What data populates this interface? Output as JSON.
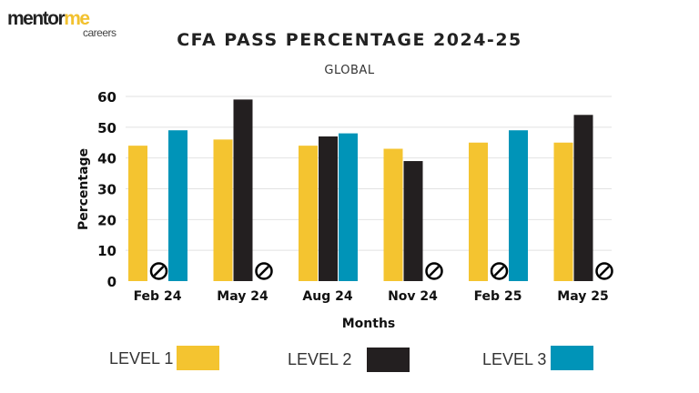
{
  "logo": {
    "text_main": "mentor",
    "text_accent": "me",
    "text_sub": "careers"
  },
  "chart_data": {
    "type": "bar",
    "title": "CFA PASS PERCENTAGE 2024-25",
    "subtitle": "GLOBAL",
    "xlabel": "Months",
    "ylabel": "Percentage",
    "ylim": [
      0,
      60
    ],
    "yticks": [
      0,
      10,
      20,
      30,
      40,
      50,
      60
    ],
    "grid": true,
    "legend_placement": "bottom",
    "categories": [
      "Feb 24",
      "May 24",
      "Aug 24",
      "Nov 24",
      "Feb 25",
      "May 25"
    ],
    "series": [
      {
        "name": "LEVEL 1",
        "color": "#f4c430",
        "values": [
          44,
          46,
          44,
          43,
          45,
          45
        ]
      },
      {
        "name": "LEVEL 2",
        "color": "#231f20",
        "values": [
          null,
          59,
          47,
          39,
          null,
          54
        ]
      },
      {
        "name": "LEVEL 3",
        "color": "#0094b8",
        "values": [
          49,
          null,
          48,
          null,
          49,
          null
        ]
      }
    ],
    "missing_marker": "no-exam-icon"
  }
}
